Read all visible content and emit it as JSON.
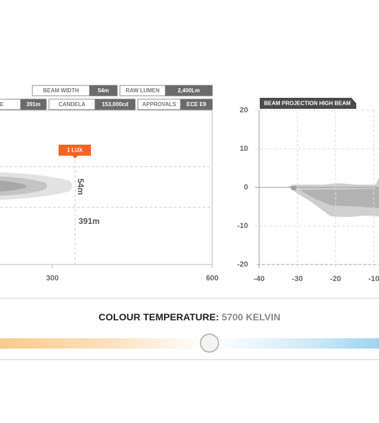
{
  "specs": {
    "row1": [
      {
        "label": "BEAM WIDTH",
        "value": "54m"
      },
      {
        "label": "RAW LUMEN",
        "value": "2,400Lm"
      }
    ],
    "row2": [
      {
        "label": "DISTANCE",
        "value": "391m"
      },
      {
        "label": "CANDELA",
        "value": "153,000cd"
      },
      {
        "label": "APPROVALS",
        "value": "ECE E9"
      }
    ]
  },
  "beam_chart": {
    "lux_tag": "1 LUX",
    "width_label": "54m",
    "distance_label": "391m",
    "xlim": [
      0,
      600
    ],
    "xticks": [
      300,
      600
    ]
  },
  "projection_chart": {
    "title": "BEAM PROJECTION HIGH BEAM",
    "xlim": [
      -40,
      40
    ],
    "xticks": [
      -40,
      -30,
      -20,
      -10
    ],
    "ylim": [
      -20,
      20
    ],
    "yticks": [
      20,
      10,
      0,
      -10,
      -20
    ]
  },
  "colour_temperature": {
    "label": "COLOUR TEMPERATURE:",
    "value": "5700 KELVIN"
  }
}
